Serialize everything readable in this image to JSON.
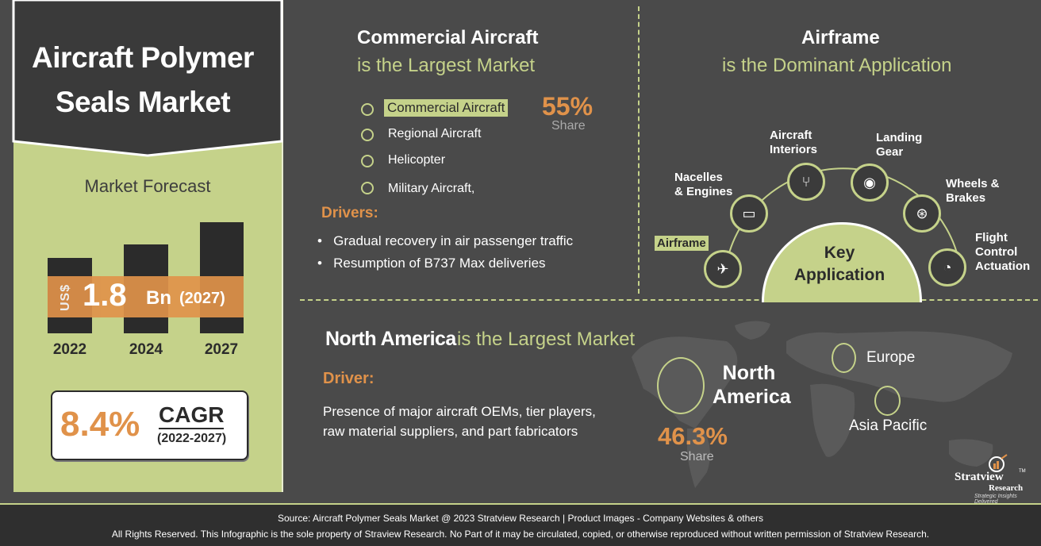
{
  "title": {
    "line1": "Aircraft Polymer",
    "line2": "Seals Market"
  },
  "forecast": {
    "heading": "Market Forecast",
    "currency": "US$",
    "value": "1.8",
    "unit": "Bn",
    "year_note": "(2027)",
    "years": [
      "2022",
      "2024",
      "2027"
    ],
    "cagr_value": "8.4%",
    "cagr_label": "CAGR",
    "cagr_period": "(2022-2027)"
  },
  "segment": {
    "title": "Commercial Aircraft",
    "subtitle": "is the Largest Market",
    "items": [
      "Commercial Aircraft",
      "Regional Aircraft",
      "Helicopter",
      "Military Aircraft,"
    ],
    "share_value": "55%",
    "share_label": "Share",
    "drivers_title": "Drivers:",
    "drivers": [
      "Gradual recovery in air passenger traffic",
      "Resumption of B737 Max deliveries"
    ]
  },
  "application": {
    "title": "Airframe",
    "subtitle": "is the Dominant Application",
    "center_line1": "Key",
    "center_line2": "Application",
    "nodes": {
      "airframe": "Airframe",
      "nacelles_1": "Nacelles",
      "nacelles_2": "& Engines",
      "interiors_1": "Aircraft",
      "interiors_2": "Interiors",
      "landing_1": "Landing",
      "landing_2": "Gear",
      "wheels_1": "Wheels &",
      "wheels_2": "Brakes",
      "flight_1": "Flight",
      "flight_2": "Control",
      "flight_3": "Actuation"
    },
    "icons": [
      "airplane-icon",
      "engine-icon",
      "seats-icon",
      "landing-gear-icon",
      "wheel-brake-icon",
      "flight-control-icon"
    ]
  },
  "region": {
    "title_bold": "North America",
    "title_rest": "is the Largest Market",
    "driver_title": "Driver:",
    "driver_text": "Presence of major aircraft OEMs, tier players, raw material suppliers, and part fabricators",
    "na_line1": "North",
    "na_line2": "America",
    "na_share": "46.3%",
    "na_share_label": "Share",
    "europe": "Europe",
    "asia_pacific": "Asia Pacific"
  },
  "logo": {
    "name": "Stratview",
    "sub": "Research",
    "tm": "TM",
    "tagline": "Strategic Insights Delivered"
  },
  "footer": {
    "line1": "Source: Aircraft Polymer Seals Market @ 2023 Stratview Research | Product Images  - Company Websites & others",
    "line2": "All Rights Reserved. This Infographic is the sole property of Straview Research. No Part of it may be circulated, copied, or otherwise reproduced without written permission of Stratview Research."
  },
  "colors": {
    "background": "#4a4a4a",
    "accent_green": "#c5d28a",
    "accent_orange": "#e0924a",
    "dark": "#2b2b2b"
  }
}
